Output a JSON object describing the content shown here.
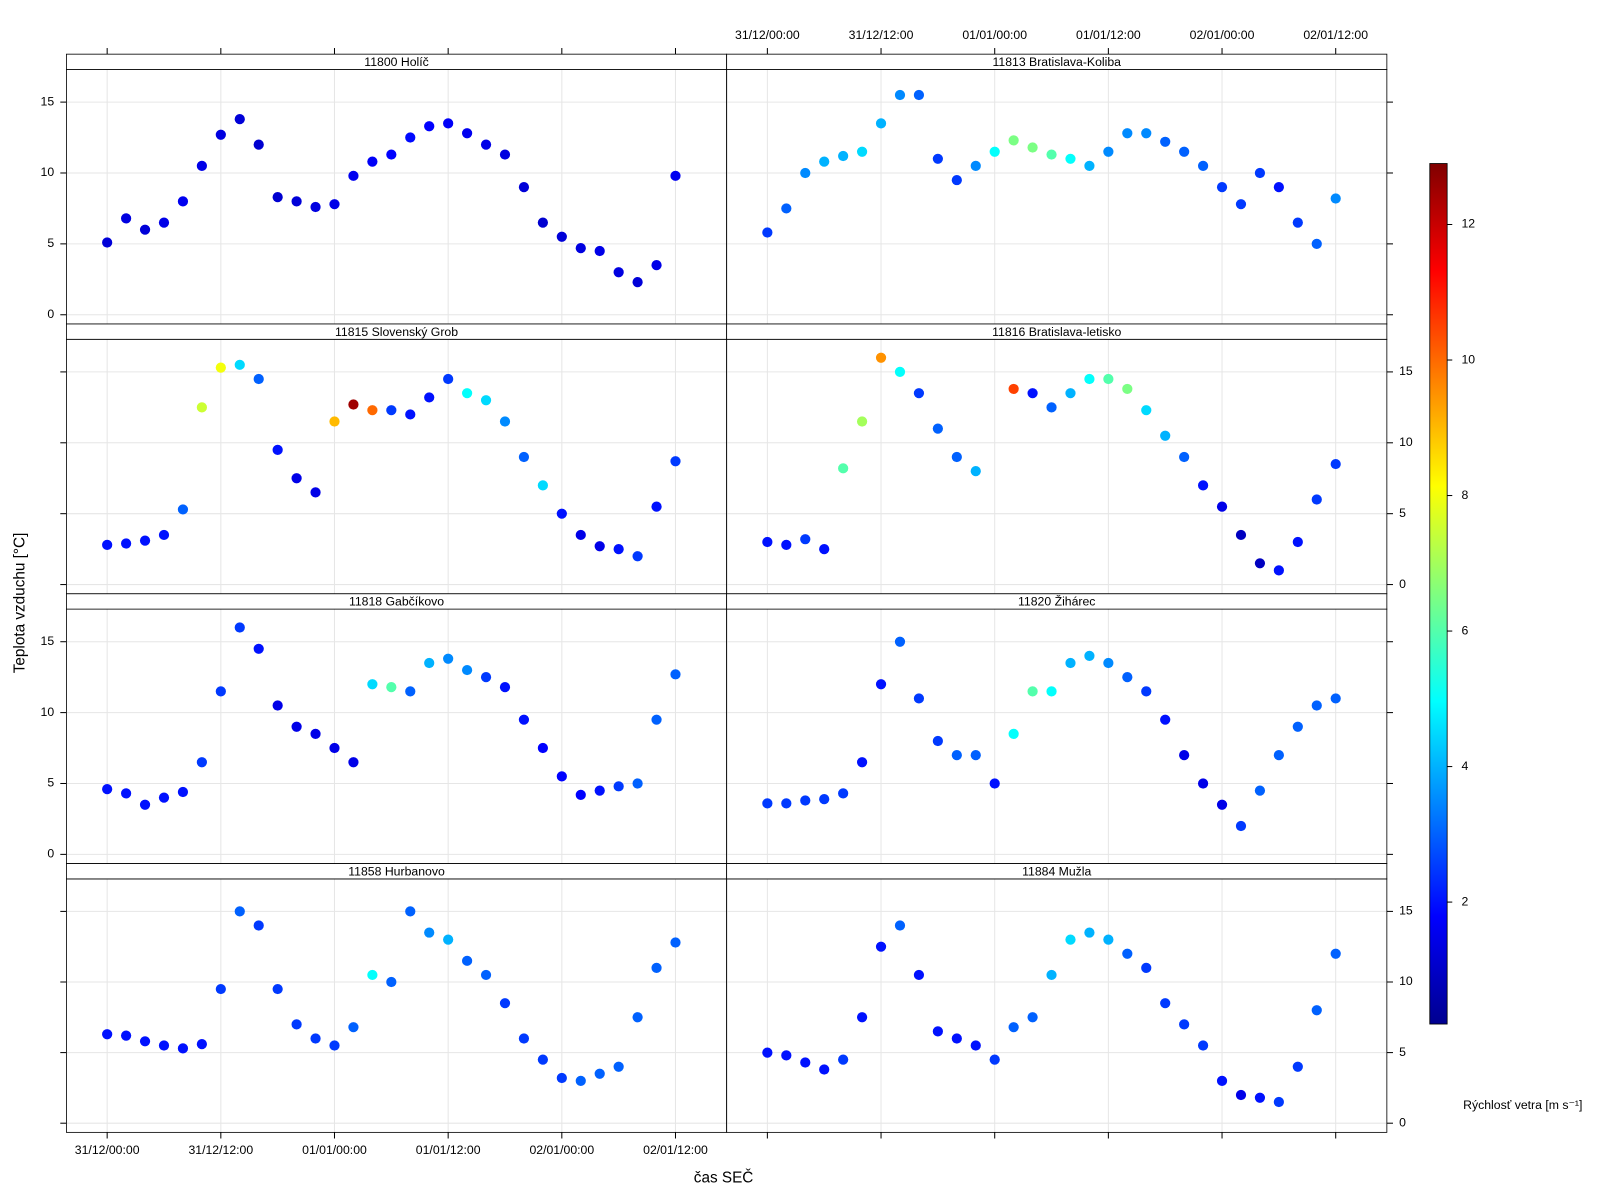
{
  "chart_data": {
    "type": "scatter",
    "y_label": "Teplota vzduchu [°C]",
    "x_label": "čas SEČ",
    "colorbar_label": "Rýchlosť vetra [m s⁻¹]",
    "colormap": "jet",
    "zlim": [
      0.2,
      12.9
    ],
    "zticks": [
      2,
      4,
      6,
      8,
      10,
      12
    ],
    "xlim": [
      -4.3,
      65.4
    ],
    "ylim": [
      -0.65,
      17.3
    ],
    "yticks": [
      0,
      5,
      10,
      15
    ],
    "xticks": [
      {
        "value": 0,
        "label": "31/12/00:00"
      },
      {
        "value": 12,
        "label": "31/12/12:00"
      },
      {
        "value": 24,
        "label": "01/01/00:00"
      },
      {
        "value": 36,
        "label": "01/01/12:00"
      },
      {
        "value": 48,
        "label": "02/01/00:00"
      },
      {
        "value": 60,
        "label": "02/01/12:00"
      }
    ],
    "grid": true,
    "x": [
      0,
      2,
      4,
      6,
      8,
      10,
      12,
      14,
      16,
      18,
      20,
      22,
      24,
      26,
      28,
      30,
      32,
      34,
      36,
      38,
      40,
      42,
      44,
      46,
      48,
      50,
      52,
      54,
      56,
      58,
      60
    ],
    "panels": [
      {
        "title": "11800 Holíč",
        "values": [
          5.1,
          6.8,
          6.0,
          6.5,
          8.0,
          10.5,
          12.7,
          13.8,
          12.0,
          8.3,
          8.0,
          7.6,
          7.8,
          9.8,
          10.8,
          11.3,
          12.5,
          13.3,
          13.5,
          12.8,
          12.0,
          11.3,
          9.0,
          6.5,
          5.5,
          4.7,
          4.5,
          3.0,
          2.3,
          3.5,
          9.8
        ],
        "wind": [
          1.3,
          1.4,
          1.3,
          1.5,
          1.6,
          1.5,
          1.4,
          1.3,
          1.2,
          1.2,
          1.3,
          1.4,
          1.5,
          1.6,
          1.7,
          1.8,
          1.9,
          1.8,
          1.7,
          1.6,
          1.5,
          1.4,
          1.3,
          1.2,
          1.3,
          1.4,
          1.5,
          1.4,
          1.3,
          1.5,
          1.6
        ]
      },
      {
        "title": "11813 Bratislava-Koliba",
        "values": [
          5.8,
          7.5,
          10.0,
          10.8,
          11.2,
          11.5,
          13.5,
          15.5,
          15.5,
          11.0,
          9.5,
          10.5,
          11.5,
          12.3,
          11.8,
          11.3,
          11.0,
          10.5,
          11.5,
          12.8,
          12.8,
          12.2,
          11.5,
          10.5,
          9.0,
          7.8,
          10.0,
          9.0,
          6.5,
          5.0,
          8.2
        ],
        "wind": [
          2.5,
          3.0,
          3.5,
          4.0,
          4.0,
          4.5,
          4.0,
          3.5,
          3.0,
          2.5,
          2.5,
          3.5,
          5.0,
          6.5,
          6.5,
          6.0,
          5.0,
          4.0,
          3.5,
          3.5,
          3.5,
          3.0,
          3.0,
          3.0,
          2.5,
          2.5,
          2.5,
          2.0,
          2.5,
          3.0,
          3.5
        ]
      },
      {
        "title": "11815 Slovenský Grob",
        "values": [
          2.8,
          2.9,
          3.1,
          3.5,
          5.3,
          12.5,
          15.3,
          15.5,
          14.5,
          9.5,
          7.5,
          6.5,
          11.5,
          12.7,
          12.3,
          12.3,
          12.0,
          13.2,
          14.5,
          13.5,
          13.0,
          11.5,
          9.0,
          7.0,
          5.0,
          3.5,
          2.7,
          2.5,
          2.0,
          5.5,
          8.7
        ],
        "wind": [
          2.0,
          2.0,
          2.0,
          2.0,
          3.0,
          7.5,
          8.0,
          4.5,
          3.0,
          2.0,
          1.5,
          1.5,
          9.0,
          12.5,
          10.0,
          2.5,
          2.0,
          2.0,
          2.5,
          5.0,
          4.5,
          3.5,
          3.0,
          4.5,
          2.0,
          1.5,
          1.5,
          2.0,
          2.5,
          2.0,
          2.5
        ]
      },
      {
        "title": "11816 Bratislava-letisko",
        "values": [
          3.0,
          2.8,
          3.2,
          2.5,
          8.2,
          11.5,
          16.0,
          15.0,
          13.5,
          11.0,
          9.0,
          8.0,
          null,
          13.8,
          13.5,
          12.5,
          13.5,
          14.5,
          14.5,
          13.8,
          12.3,
          10.5,
          9.0,
          7.0,
          5.5,
          3.5,
          1.5,
          1.0,
          3.0,
          6.0,
          8.5
        ],
        "wind": [
          2.0,
          2.0,
          2.5,
          2.0,
          6.0,
          7.0,
          9.5,
          5.0,
          2.5,
          3.0,
          3.0,
          4.0,
          null,
          10.5,
          2.0,
          3.0,
          4.0,
          5.0,
          6.0,
          6.5,
          4.5,
          4.0,
          3.0,
          2.0,
          1.5,
          1.0,
          1.0,
          2.0,
          2.0,
          2.5,
          2.5
        ]
      },
      {
        "title": "11818 Gabčíkovo",
        "values": [
          4.6,
          4.3,
          3.5,
          4.0,
          4.4,
          6.5,
          11.5,
          16.0,
          14.5,
          10.5,
          9.0,
          8.5,
          7.5,
          6.5,
          12.0,
          11.8,
          11.5,
          13.5,
          13.8,
          13.0,
          12.5,
          11.8,
          9.5,
          7.5,
          5.5,
          4.2,
          4.5,
          4.8,
          5.0,
          9.5,
          12.7
        ],
        "wind": [
          2.0,
          2.0,
          2.0,
          2.0,
          2.0,
          2.5,
          2.5,
          2.5,
          2.0,
          1.5,
          1.5,
          1.5,
          1.5,
          1.5,
          4.5,
          6.0,
          3.0,
          4.0,
          3.5,
          3.5,
          2.5,
          2.0,
          2.0,
          1.8,
          1.8,
          1.8,
          2.0,
          2.5,
          3.0,
          3.0,
          3.0
        ]
      },
      {
        "title": "11820 Žihárec",
        "values": [
          3.6,
          3.6,
          3.8,
          3.9,
          4.3,
          6.5,
          12.0,
          15.0,
          11.0,
          8.0,
          7.0,
          7.0,
          5.0,
          8.5,
          11.5,
          11.5,
          13.5,
          14.0,
          13.5,
          12.5,
          11.5,
          9.5,
          7.0,
          5.0,
          3.5,
          2.0,
          4.5,
          7.0,
          9.0,
          10.5,
          11.0
        ],
        "wind": [
          2.5,
          2.5,
          2.5,
          2.5,
          2.5,
          2.0,
          2.0,
          3.0,
          2.5,
          2.5,
          3.0,
          3.0,
          2.0,
          5.0,
          6.0,
          5.0,
          4.0,
          4.0,
          3.5,
          3.0,
          2.5,
          2.0,
          1.5,
          1.5,
          1.5,
          2.5,
          3.0,
          3.0,
          3.0,
          3.0,
          3.0
        ]
      },
      {
        "title": "11858 Hurbanovo",
        "values": [
          6.3,
          6.2,
          5.8,
          5.5,
          5.3,
          5.6,
          9.5,
          15.0,
          14.0,
          9.5,
          7.0,
          6.0,
          5.5,
          6.8,
          10.5,
          10.0,
          15.0,
          13.5,
          13.0,
          11.5,
          10.5,
          8.5,
          6.0,
          4.5,
          3.2,
          3.0,
          3.5,
          4.0,
          7.5,
          11.0,
          12.8
        ],
        "wind": [
          2.0,
          2.0,
          2.0,
          2.0,
          2.0,
          2.0,
          2.5,
          3.0,
          2.5,
          2.5,
          2.5,
          2.5,
          2.5,
          3.0,
          5.0,
          3.0,
          3.0,
          3.5,
          4.0,
          3.0,
          3.0,
          2.5,
          2.5,
          2.5,
          2.5,
          3.0,
          3.0,
          3.0,
          3.0,
          3.0,
          3.0
        ]
      },
      {
        "title": "11884 Mužla",
        "values": [
          5.0,
          4.8,
          4.3,
          3.8,
          4.5,
          7.5,
          12.5,
          14.0,
          10.5,
          6.5,
          6.0,
          5.5,
          4.5,
          6.8,
          7.5,
          10.5,
          13.0,
          13.5,
          13.0,
          12.0,
          11.0,
          8.5,
          7.0,
          5.5,
          3.0,
          2.0,
          1.8,
          1.5,
          4.0,
          8.0,
          12.0
        ],
        "wind": [
          2.0,
          2.0,
          2.0,
          2.0,
          2.5,
          2.0,
          2.0,
          3.0,
          2.0,
          2.0,
          2.0,
          2.0,
          2.5,
          3.0,
          3.0,
          4.0,
          4.5,
          4.0,
          4.0,
          3.0,
          2.5,
          2.5,
          2.5,
          2.5,
          2.0,
          1.5,
          2.0,
          2.5,
          2.5,
          3.0,
          3.0
        ]
      }
    ]
  }
}
